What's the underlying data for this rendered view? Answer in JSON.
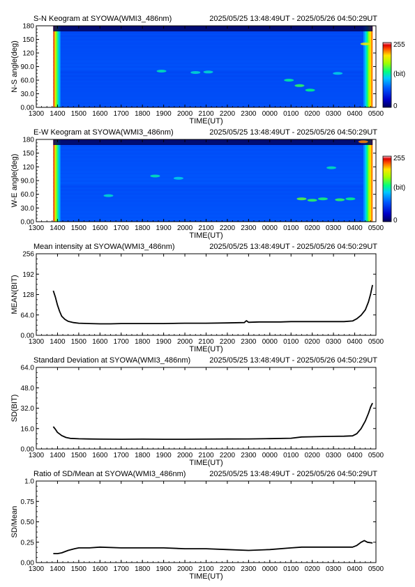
{
  "x_axis": {
    "label": "TIME(UT)",
    "ticks": [
      "1300",
      "1400",
      "1500",
      "1600",
      "1700",
      "1800",
      "1900",
      "2000",
      "2100",
      "2200",
      "2300",
      "0000",
      "0100",
      "0200",
      "0300",
      "0400",
      "0500"
    ]
  },
  "colorbar": {
    "top_label": "255",
    "unit_label": "(bit)",
    "bottom_label": "0"
  },
  "chart_data": [
    {
      "type": "heatmap",
      "title": "S-N Keogram at SYOWA(WMI3_486nm)",
      "period": "2025/05/25 13:48:49UT - 2025/05/26 04:50:29UT",
      "xlabel": "TIME(UT)",
      "ylabel": "N-S angle(deg)",
      "y_ticks": [
        "0.00",
        "30.0",
        "60.0",
        "90.0",
        "120",
        "150",
        "180"
      ],
      "ylim": [
        0,
        180
      ],
      "xlim": [
        "13:00",
        "05:00"
      ],
      "color_scale": {
        "min": 0,
        "max": 255,
        "unit": "(bit)"
      },
      "data_start_hour": 13.8,
      "data_end_hour": 28.84,
      "background_level": 70,
      "features": [
        {
          "time_hour": 18.9,
          "angle": 80,
          "level": 130
        },
        {
          "time_hour": 20.5,
          "angle": 77,
          "level": 125
        },
        {
          "time_hour": 21.1,
          "angle": 78,
          "level": 125
        },
        {
          "time_hour": 24.9,
          "angle": 60,
          "level": 135
        },
        {
          "time_hour": 25.4,
          "angle": 48,
          "level": 150
        },
        {
          "time_hour": 25.9,
          "angle": 38,
          "level": 140
        },
        {
          "time_hour": 27.2,
          "angle": 75,
          "level": 120
        },
        {
          "time_hour": 28.5,
          "angle": 140,
          "level": 200
        }
      ]
    },
    {
      "type": "heatmap",
      "title": "E-W Keogram at SYOWA(WMI3_486nm)",
      "period": "2025/05/25 13:48:49UT - 2025/05/26 04:50:29UT",
      "xlabel": "TIME(UT)",
      "ylabel": "W-E angle(deg)",
      "y_ticks": [
        "0.00",
        "30.0",
        "60.0",
        "90.0",
        "120",
        "150",
        "180"
      ],
      "ylim": [
        0,
        180
      ],
      "xlim": [
        "13:00",
        "05:00"
      ],
      "color_scale": {
        "min": 0,
        "max": 255,
        "unit": "(bit)"
      },
      "data_start_hour": 13.8,
      "data_end_hour": 28.84,
      "background_level": 72,
      "features": [
        {
          "time_hour": 16.4,
          "angle": 57,
          "level": 125
        },
        {
          "time_hour": 18.6,
          "angle": 100,
          "level": 130
        },
        {
          "time_hour": 19.7,
          "angle": 95,
          "level": 120
        },
        {
          "time_hour": 25.5,
          "angle": 50,
          "level": 160
        },
        {
          "time_hour": 26.0,
          "angle": 47,
          "level": 150
        },
        {
          "time_hour": 26.5,
          "angle": 50,
          "level": 145
        },
        {
          "time_hour": 27.3,
          "angle": 48,
          "level": 150
        },
        {
          "time_hour": 27.8,
          "angle": 50,
          "level": 140
        },
        {
          "time_hour": 26.9,
          "angle": 118,
          "level": 130
        },
        {
          "time_hour": 28.4,
          "angle": 175,
          "level": 220
        }
      ]
    },
    {
      "type": "line",
      "title": "Mean intensity at SYOWA(WMI3_486nm)",
      "period": "2025/05/25 13:48:49UT - 2025/05/26 04:50:29UT",
      "xlabel": "TIME(UT)",
      "ylabel": "MEAN(BIT)",
      "y_ticks": [
        "0.00",
        "64.0",
        "128",
        "192",
        "256"
      ],
      "ylim": [
        0,
        256
      ],
      "xlim": [
        "13:00",
        "05:00"
      ],
      "series": [
        {
          "x": [
            13.8,
            13.9,
            14.0,
            14.1,
            14.2,
            14.35,
            14.5,
            14.75,
            15.0,
            15.5,
            16.0,
            16.5,
            17.0,
            18.0,
            19.0,
            20.0,
            21.0,
            22.0,
            22.8,
            22.9,
            23.0,
            23.5,
            24.0,
            24.5,
            25.0,
            25.5,
            26.0,
            26.5,
            27.0,
            27.5,
            27.9,
            28.1,
            28.3,
            28.5,
            28.65,
            28.75,
            28.84
          ],
          "y": [
            140,
            120,
            95,
            75,
            60,
            50,
            44,
            40,
            38,
            37,
            36,
            36,
            37,
            37,
            37,
            38,
            38,
            39,
            40,
            46,
            41,
            42,
            42,
            42,
            43,
            43,
            43,
            43,
            43,
            43,
            45,
            52,
            63,
            80,
            105,
            130,
            158
          ]
        }
      ]
    },
    {
      "type": "line",
      "title": "Standard Deviation at SYOWA(WMI3_486nm)",
      "period": "2025/05/25 13:48:49UT - 2025/05/26 04:50:29UT",
      "xlabel": "TIME(UT)",
      "ylabel": "SD(BIT)",
      "y_ticks": [
        "0.00",
        "16.0",
        "32.0",
        "48.0",
        "64.0"
      ],
      "ylim": [
        0,
        64
      ],
      "xlim": [
        "13:00",
        "05:00"
      ],
      "series": [
        {
          "x": [
            13.8,
            13.9,
            14.0,
            14.2,
            14.4,
            14.6,
            15.0,
            15.5,
            16.0,
            17.0,
            18.0,
            19.0,
            20.0,
            21.0,
            22.0,
            23.0,
            24.0,
            25.0,
            25.5,
            26.0,
            26.5,
            27.0,
            27.5,
            27.9,
            28.1,
            28.3,
            28.5,
            28.65,
            28.75,
            28.84
          ],
          "y": [
            17.5,
            15.5,
            13,
            10.5,
            9,
            8.3,
            8,
            7.8,
            7.7,
            7.6,
            7.7,
            7.6,
            7.6,
            7.7,
            7.8,
            7.9,
            8.1,
            8.4,
            9.4,
            9.6,
            9.8,
            9.9,
            10,
            10.3,
            12,
            16,
            22,
            28,
            33,
            36
          ]
        }
      ]
    },
    {
      "type": "line",
      "title": "Ratio of SD/Mean at SYOWA(WMI3_486nm)",
      "period": "2025/05/25 13:48:49UT - 2025/05/26 04:50:29UT",
      "xlabel": "TIME(UT)",
      "ylabel": "SD/Mean",
      "y_ticks": [
        "0.00",
        "0.25",
        "0.50",
        "0.75",
        "1.0"
      ],
      "ylim": [
        0,
        1
      ],
      "xlim": [
        "13:00",
        "05:00"
      ],
      "series": [
        {
          "x": [
            13.8,
            14.0,
            14.2,
            14.5,
            14.8,
            15.0,
            15.5,
            16.0,
            17.0,
            18.0,
            19.0,
            20.0,
            21.0,
            22.0,
            23.0,
            24.0,
            25.0,
            25.5,
            26.0,
            27.0,
            27.5,
            27.9,
            28.1,
            28.3,
            28.45,
            28.6,
            28.84
          ],
          "y": [
            0.11,
            0.11,
            0.12,
            0.15,
            0.17,
            0.18,
            0.18,
            0.19,
            0.18,
            0.18,
            0.18,
            0.17,
            0.17,
            0.16,
            0.15,
            0.16,
            0.18,
            0.19,
            0.19,
            0.19,
            0.19,
            0.19,
            0.21,
            0.25,
            0.27,
            0.25,
            0.24
          ]
        }
      ]
    }
  ]
}
